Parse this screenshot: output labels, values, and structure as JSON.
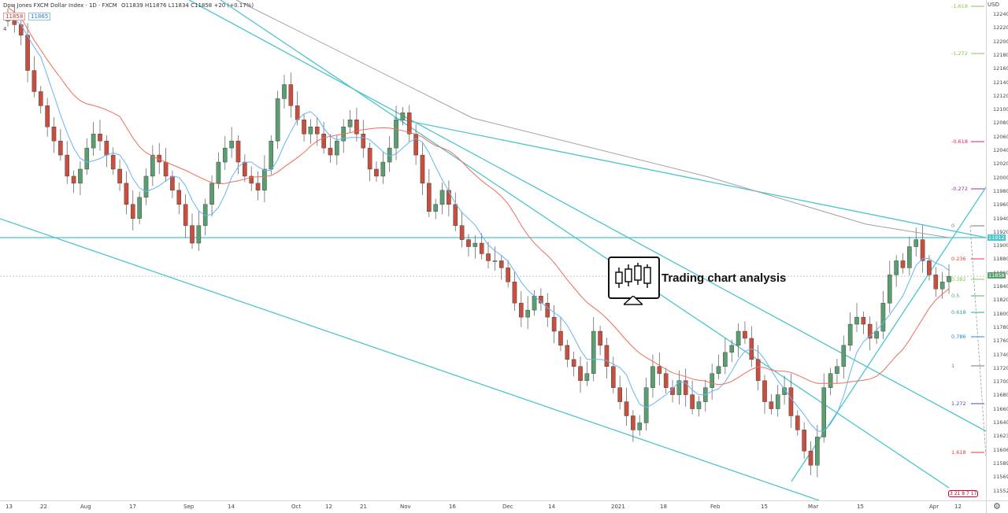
{
  "header": {
    "instrument": "Dow Jones FXCM Dollar Index · 1D · FXCM",
    "ohlc": "O11839 H11876 L11834 C11858 +20 (+0.17%)",
    "price_box_red": "11858",
    "price_box_blue": "11865",
    "legend_toggle": "4"
  },
  "axis": {
    "currency": "USD",
    "price_ticks": [
      "12240",
      "12220",
      "12200",
      "12180",
      "12160",
      "12140",
      "12120",
      "12100",
      "12080",
      "12060",
      "12040",
      "12020",
      "12000",
      "11980",
      "11960",
      "11940",
      "11920",
      "11900",
      "11880",
      "11860",
      "11840",
      "11820",
      "11800",
      "11780",
      "11760",
      "11740",
      "11720",
      "11700",
      "11680",
      "11660",
      "11640",
      "11623",
      "11606",
      "11589",
      "11569",
      "11552"
    ],
    "time_labels": [
      "13",
      "22",
      "Aug",
      "17",
      "Sep",
      "14",
      "Oct",
      "12",
      "21",
      "Nov",
      "16",
      "Dec",
      "14",
      "2021",
      "18",
      "Feb",
      "15",
      "Mar",
      "15",
      "Apr",
      "12"
    ],
    "last_price": "11858",
    "level_price": "11912",
    "scale_badge": "3 21 8 7 17"
  },
  "fib": {
    "levels": [
      {
        "label": "-1.618",
        "color": "#8bc34a"
      },
      {
        "label": "-1.272",
        "color": "#8bc34a"
      },
      {
        "label": "-0.618",
        "color": "#e91e63"
      },
      {
        "label": "-0.272",
        "color": "#9c27b0"
      },
      {
        "label": "0",
        "color": "#787878"
      },
      {
        "label": "0.236",
        "color": "#e53935"
      },
      {
        "label": "0.382",
        "color": "#8bc34a"
      },
      {
        "label": "0.5",
        "color": "#4caf50"
      },
      {
        "label": "0.618",
        "color": "#26a69a"
      },
      {
        "label": "0.786",
        "color": "#1e88e5"
      },
      {
        "label": "1",
        "color": "#787878"
      },
      {
        "label": "1.272",
        "color": "#3f51b5"
      },
      {
        "label": "1.618",
        "color": "#e53935"
      }
    ]
  },
  "watermark": {
    "text": "Trading chart analysis",
    "icon": "candlestick-monitor-icon"
  },
  "colors": {
    "up": "#5a9e6f",
    "down": "#c64f3f",
    "trend": "#4cc4cc",
    "ma_fast": "#64b5f6",
    "ma_mid": "#ef6c5a",
    "ma_slow": "#a0a0a0"
  },
  "chart_data": {
    "type": "candlestick",
    "title": "",
    "ylim": [
      11540,
      12250
    ],
    "close_series": [
      12230,
      12215,
      12200,
      12150,
      12120,
      12100,
      12070,
      12050,
      12030,
      12000,
      11990,
      12010,
      12040,
      12060,
      12050,
      12030,
      12010,
      11990,
      11960,
      11940,
      11970,
      12000,
      12030,
      12020,
      12000,
      11980,
      11960,
      11930,
      11905,
      11930,
      11960,
      11990,
      12020,
      12040,
      12050,
      12020,
      12000,
      11990,
      11980,
      12010,
      12050,
      12110,
      12130,
      12100,
      12080,
      12060,
      12070,
      12060,
      12040,
      12030,
      12050,
      12070,
      12080,
      12060,
      12040,
      12010,
      12000,
      12020,
      12040,
      12080,
      12090,
      12060,
      12030,
      11990,
      11950,
      11960,
      11980,
      11960,
      11930,
      11910,
      11900,
      11905,
      11890,
      11880,
      11880,
      11870,
      11850,
      11820,
      11800,
      11810,
      11830,
      11820,
      11800,
      11780,
      11760,
      11740,
      11730,
      11710,
      11720,
      11780,
      11760,
      11730,
      11700,
      11680,
      11660,
      11640,
      11650,
      11700,
      11730,
      11720,
      11700,
      11690,
      11710,
      11690,
      11670,
      11680,
      11700,
      11720,
      11730,
      11750,
      11760,
      11780,
      11770,
      11740,
      11710,
      11680,
      11670,
      11690,
      11700,
      11660,
      11640,
      11610,
      11590,
      11630,
      11700,
      11720,
      11730,
      11760,
      11790,
      11800,
      11790,
      11770,
      11780,
      11820,
      11860,
      11880,
      11870,
      11900,
      11910,
      11880,
      11860,
      11840,
      11850,
      11858
    ]
  }
}
